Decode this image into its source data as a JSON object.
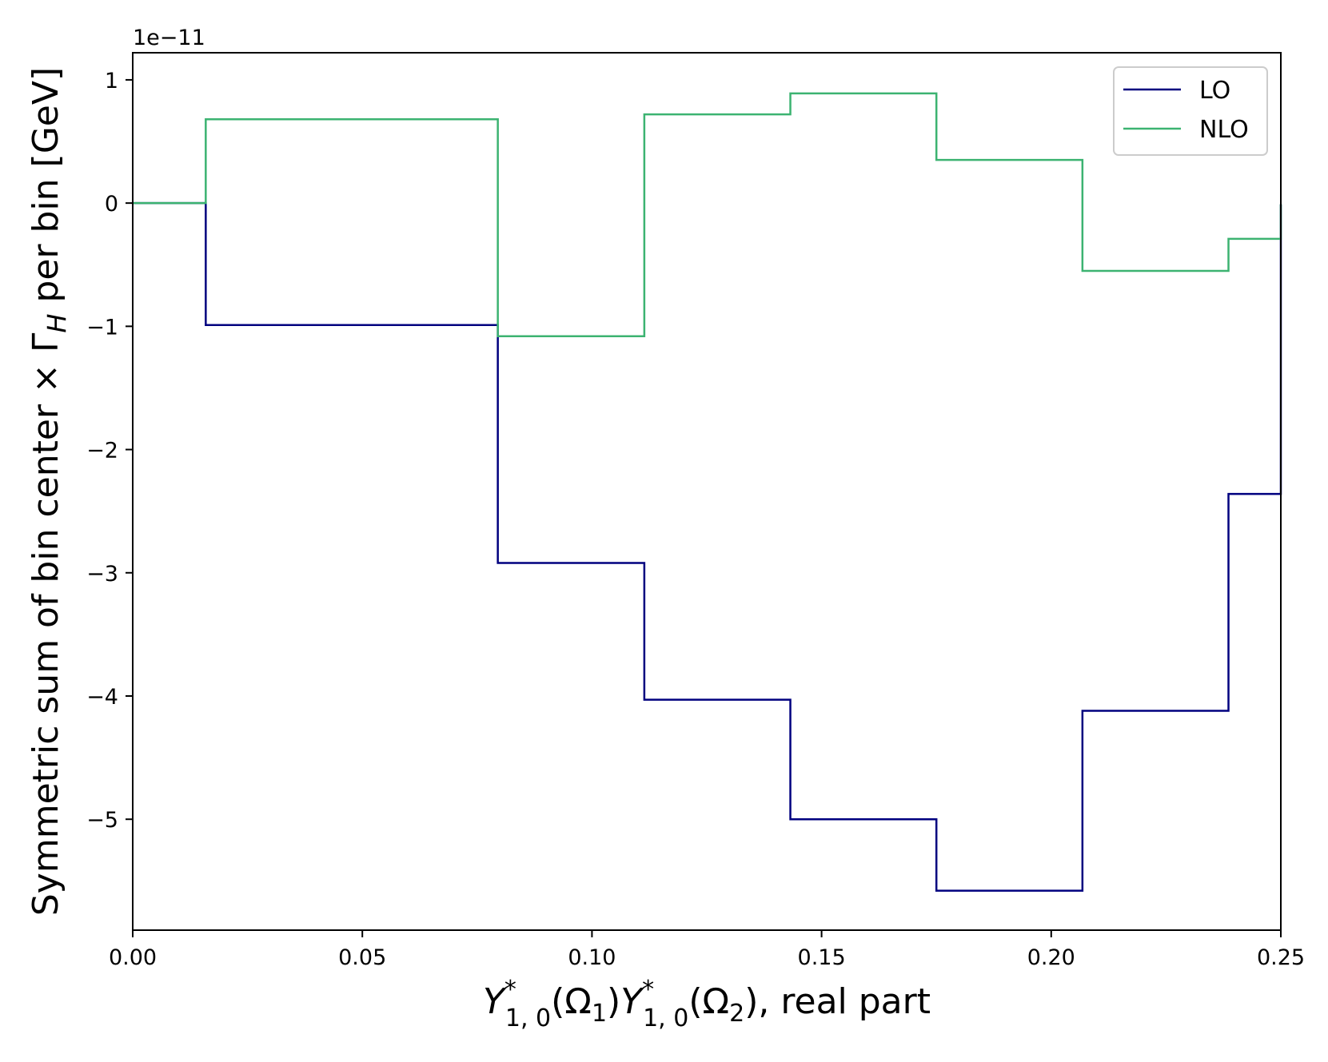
{
  "chart_data": {
    "type": "line",
    "step": true,
    "xlabel_parts": {
      "sym": "Y",
      "sup": "*",
      "sub": "1, 0",
      "omega1": "(Ω",
      "omega1_sub": "1",
      "omega1_close": ")",
      "omega2": "(Ω",
      "omega2_sub": "2",
      "omega2_close": ")",
      "tail": ", real part"
    },
    "ylabel_parts": {
      "pre": "Symmetric sum of bin center × Γ",
      "sub": "H",
      "post": " per bin [GeV]"
    },
    "y_offset_text": "1e−11",
    "y_scale_exponent": -11,
    "xlim": [
      0.0,
      0.25
    ],
    "ylim": [
      -5.9,
      1.22
    ],
    "xticks": [
      0.0,
      0.05,
      0.1,
      0.15,
      0.2,
      0.25
    ],
    "xtick_labels": [
      "0.00",
      "0.05",
      "0.10",
      "0.15",
      "0.20",
      "0.25"
    ],
    "yticks": [
      1,
      0,
      -1,
      -2,
      -3,
      -4,
      -5
    ],
    "ytick_labels": [
      "1",
      "0",
      "−1",
      "−2",
      "−3",
      "−4",
      "−5"
    ],
    "grid": false,
    "legend_position": "top-right",
    "bin_edges": [
      0.0,
      0.0159,
      0.0477,
      0.0795,
      0.1114,
      0.1432,
      0.175,
      0.2068,
      0.2386,
      0.25
    ],
    "series": [
      {
        "name": "LO",
        "color": "#00007f",
        "values": [
          0.0,
          -0.99,
          -0.99,
          -2.92,
          -4.03,
          -5.0,
          -5.58,
          -4.12,
          -2.36,
          -0.01
        ]
      },
      {
        "name": "NLO",
        "color": "#3cb371",
        "values": [
          0.0,
          0.68,
          0.68,
          -1.08,
          0.72,
          0.89,
          0.35,
          -0.55,
          -0.29,
          -0.01
        ]
      }
    ]
  }
}
